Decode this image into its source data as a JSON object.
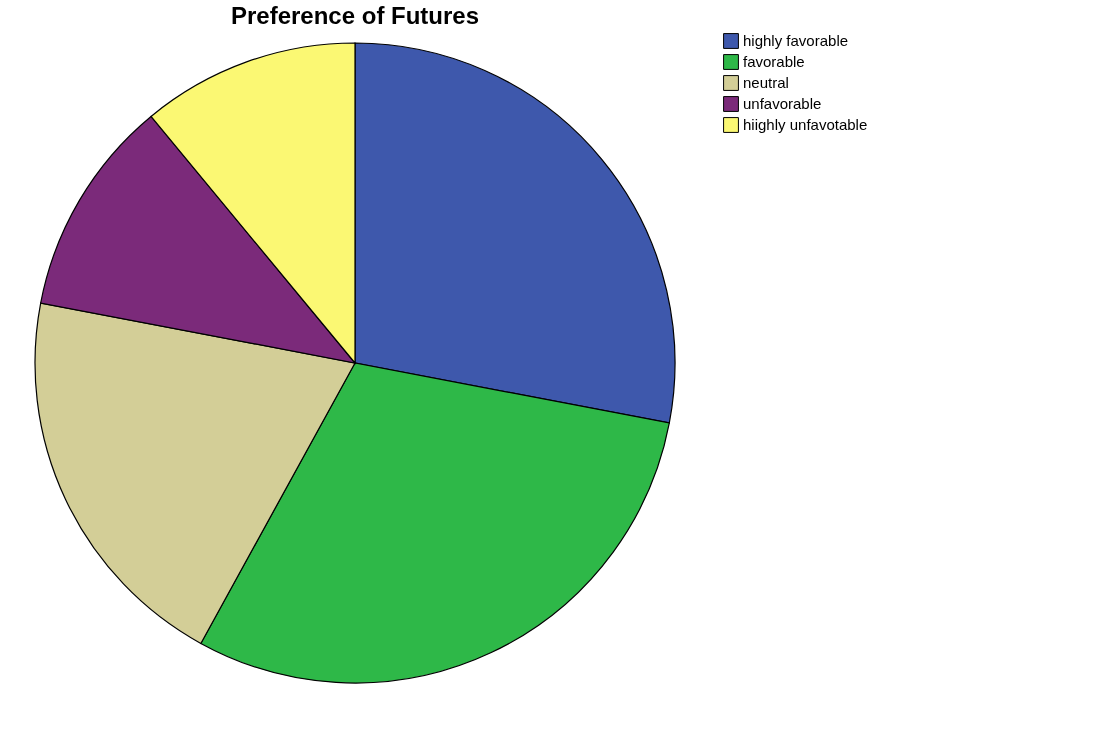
{
  "chart_data": {
    "type": "pie",
    "title": "Preference of  Futures",
    "categories": [
      "highly favorable",
      "favorable",
      "neutral",
      "unfavorable",
      "hiighly unfavotable"
    ],
    "values": [
      28,
      30,
      20,
      11,
      11
    ],
    "colors": [
      "#3e58ac",
      "#2eb848",
      "#d3ce97",
      "#7b2a7a",
      "#fbf873"
    ],
    "legend": "top right"
  }
}
